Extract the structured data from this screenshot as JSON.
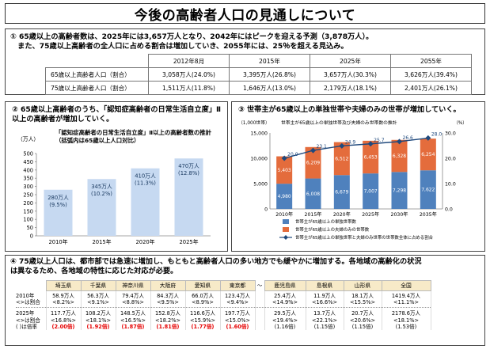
{
  "title": "今後の高齢者人口の見通しについて",
  "section1": {
    "heading_line1": "① 65歳以上の高齢者数は、2025年には3,657万人となり、2042年にはピークを迎える予測（3,878万人）。",
    "heading_line2": "　また、75歳以上高齢者の全人口に占める割合は増加していき、2055年には、25％を超える見込み。",
    "columns": [
      "2012年8月",
      "2015年",
      "2025年",
      "2055年"
    ],
    "rows": [
      {
        "label": "65歳以上高齢者人口（割合）",
        "values": [
          "3,058万人(24.0%)",
          "3,395万人(26.8%)",
          "3,657万人(30.3%)",
          "3,626万人(39.4%)"
        ]
      },
      {
        "label": "75歳以上高齢者人口（割合）",
        "values": [
          "1,511万人(11.8%)",
          "1,646万人(13.0%)",
          "2,179万人(18.1%)",
          "2,401万人(26.1%)"
        ]
      }
    ]
  },
  "section2": {
    "heading": "② 65歳以上高齢者のうち、「認知症高齢者の日常生活自立度」Ⅱ以上の高齢者が増加していく。",
    "subtitle": "「認知症高齢者の日常生活自立度」Ⅱ以上の高齢者数の推計（括弧内は65歳以上人口対比）",
    "chart_data": {
      "type": "bar",
      "unit": "（万人）",
      "categories": [
        "2010年",
        "2015年",
        "2020年",
        "2025年"
      ],
      "values": [
        280,
        345,
        410,
        470
      ],
      "labels": [
        "280万人",
        "345万人",
        "410万人",
        "470万人"
      ],
      "ratios": [
        "(9.5%)",
        "(10.2%)",
        "(11.3%)",
        "(12.8%)"
      ],
      "yticks": [
        "0",
        "50",
        "100",
        "150",
        "200",
        "250",
        "300",
        "350",
        "400",
        "450",
        "500"
      ],
      "ylim": [
        0,
        500
      ],
      "bar_color": "#c6d9f1"
    }
  },
  "section3": {
    "heading": "③ 世帯主が65歳以上の単独世帯や夫婦のみの世帯が増加していく。",
    "chart_title": "世帯主が65歳以上の単独世帯及び夫婦のみ世帯数の推計",
    "left_unit": "（1,000世帯）",
    "right_unit": "（%）",
    "chart_data": {
      "type": "bar",
      "categories": [
        "2010年",
        "2015年",
        "2020年",
        "2025年",
        "2030年",
        "2035年"
      ],
      "series": [
        {
          "name": "世帯主が65歳以上の単独世帯数",
          "values": [
            4980,
            6008,
            6679,
            7007,
            7298,
            7622
          ],
          "labels": [
            "4,980",
            "6,008",
            "6,679",
            "7,007",
            "7,298",
            "7,622"
          ],
          "color": "#4f81bd"
        },
        {
          "name": "世帯主が65歳以上の夫婦のみの世帯数",
          "values": [
            5403,
            6209,
            6512,
            6453,
            6328,
            6254
          ],
          "labels": [
            "5,403",
            "6,209",
            "6,512",
            "6,453",
            "6,328",
            "6,254"
          ],
          "color": "#e46c3c"
        },
        {
          "name": "世帯主が65歳以上の単独世帯と夫婦のみ世帯の世帯数全体に占める割合",
          "values": [
            20.0,
            23.1,
            24.9,
            25.7,
            26.6,
            28.0
          ],
          "labels": [
            "20.0",
            "23.1",
            "24.9",
            "25.7",
            "26.6",
            "28.0"
          ],
          "color": "#1f497d"
        }
      ],
      "left_ticks": [
        "0",
        "5,000",
        "10,000",
        "15,000"
      ],
      "right_ticks": [
        "0.0",
        "10.0",
        "20.0",
        "30.0"
      ],
      "ylim_left": [
        0,
        15000
      ],
      "ylim_right": [
        0,
        30
      ]
    }
  },
  "section4": {
    "heading_line1": "④ 75歳以上人口は、都市部では急速に増加し、もともと高齢者人口の多い地方でも緩やかに増加する。各地域の高齢化の状況",
    "heading_line2": "は異なるため、各地域の特性に応じた対応が必要。",
    "row_head_2010_a": "2010年",
    "row_head_2010_b": "<>は割合",
    "row_head_2025_a": "2025年",
    "row_head_2025_b": "<>は割合",
    "row_head_2025_c": "( )は倍率",
    "tilde": "～",
    "prefs": [
      {
        "name": "埼玉県",
        "v2010": "58.9万人",
        "p2010": "<8.2%>",
        "v2025": "117.7万人",
        "p2025": "<16.8%>",
        "mult": "(2.00倍)",
        "red": true
      },
      {
        "name": "千葉県",
        "v2010": "56.3万人",
        "p2010": "<9.1%>",
        "v2025": "108.2万人",
        "p2025": "<18.1%>",
        "mult": "(1.92倍)",
        "red": true
      },
      {
        "name": "神奈川県",
        "v2010": "79.4万人",
        "p2010": "<8.8%>",
        "v2025": "148.5万人",
        "p2025": "<16.5%>",
        "mult": "(1.87倍)",
        "red": true
      },
      {
        "name": "大阪府",
        "v2010": "84.3万人",
        "p2010": "<9.5%>",
        "v2025": "152.8万人",
        "p2025": "<18.2%>",
        "mult": "(1.81倍)",
        "red": true
      },
      {
        "name": "愛知県",
        "v2010": "66.0万人",
        "p2010": "<8.9%>",
        "v2025": "116.6万人",
        "p2025": "<15.9%>",
        "mult": "(1.77倍)",
        "red": true
      },
      {
        "name": "東京都",
        "v2010": "123.4万人",
        "p2010": "<9.4%>",
        "v2025": "197.7万人",
        "p2025": "<15.0%>",
        "mult": "(1.60倍)",
        "red": true
      },
      {
        "name": "鹿児島県",
        "v2010": "25.4万人",
        "p2010": "<14.9%>",
        "v2025": "29.5万人",
        "p2025": "<19.4%>",
        "mult": "(1.16倍)",
        "red": false
      },
      {
        "name": "島根県",
        "v2010": "11.9万人",
        "p2010": "<16.6%>",
        "v2025": "13.7万人",
        "p2025": "<22.1%>",
        "mult": "(1.15倍)",
        "red": false
      },
      {
        "name": "山形県",
        "v2010": "18.1万人",
        "p2010": "<15.5%>",
        "v2025": "20.7万人",
        "p2025": "<20.6%>",
        "mult": "(1.15倍)",
        "red": false
      },
      {
        "name": "全国",
        "v2010": "1419.4万人",
        "p2010": "<11.1%>",
        "v2025": "2178.6万人",
        "p2025": "<18.1%>",
        "mult": "(1.53倍)",
        "red": false
      }
    ]
  }
}
